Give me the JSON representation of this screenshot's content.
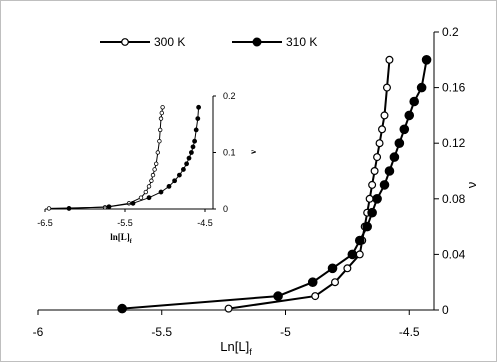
{
  "chart_data": [
    {
      "type": "line",
      "title": "",
      "xlabel": "Ln[L]",
      "xlabel_sub": "f",
      "ylabel": "ν",
      "xlim": [
        -6,
        -4.4
      ],
      "ylim": [
        0,
        0.2
      ],
      "xticks": [
        -6,
        -5.5,
        -5,
        -4.5
      ],
      "xtick_labels": [
        "-6",
        "-5.5",
        "-5",
        "-4.5"
      ],
      "yticks": [
        0,
        0.04,
        0.08,
        0.12,
        0.16,
        0.2
      ],
      "ytick_labels": [
        "0",
        "0.04",
        "0.08",
        "0.12",
        "0.16",
        "0.2"
      ],
      "y_axis_side": "right",
      "grid": false,
      "legend_position": "top",
      "series": [
        {
          "name": "300 K",
          "marker": "open-circle",
          "x": [
            -5.23,
            -4.88,
            -4.8,
            -4.75,
            -4.7,
            -4.69,
            -4.68,
            -4.67,
            -4.66,
            -4.65,
            -4.64,
            -4.63,
            -4.62,
            -4.61,
            -4.6,
            -4.59,
            -4.58
          ],
          "y": [
            0.001,
            0.01,
            0.02,
            0.03,
            0.04,
            0.05,
            0.06,
            0.07,
            0.08,
            0.09,
            0.1,
            0.11,
            0.12,
            0.13,
            0.14,
            0.16,
            0.18
          ]
        },
        {
          "name": "310 K",
          "marker": "filled-circle",
          "x": [
            -5.66,
            -5.03,
            -4.89,
            -4.81,
            -4.73,
            -4.7,
            -4.67,
            -4.65,
            -4.63,
            -4.6,
            -4.58,
            -4.56,
            -4.54,
            -4.52,
            -4.5,
            -4.48,
            -4.45,
            -4.43
          ],
          "y": [
            0.001,
            0.01,
            0.02,
            0.03,
            0.04,
            0.05,
            0.06,
            0.07,
            0.08,
            0.09,
            0.1,
            0.11,
            0.12,
            0.13,
            0.14,
            0.15,
            0.16,
            0.18
          ]
        }
      ]
    },
    {
      "type": "line",
      "title": "",
      "xlabel": "ln[L]",
      "xlabel_sub": "f",
      "ylabel": "ν",
      "xlim": [
        -6.5,
        -4.4
      ],
      "ylim": [
        0,
        0.2
      ],
      "xticks": [
        -6.5,
        -5.5,
        -4.5
      ],
      "xtick_labels": [
        "-6.5",
        "-5.5",
        "-4.5"
      ],
      "yticks": [
        0,
        0.1,
        0.2
      ],
      "ytick_labels": [
        "0",
        "0.1",
        "0.2"
      ],
      "y_axis_side": "right",
      "grid": false,
      "series": [
        {
          "name": "300 K",
          "marker": "open-circle",
          "x": [
            -6.45,
            -5.75,
            -5.45,
            -5.3,
            -5.24,
            -5.2,
            -5.17,
            -5.15,
            -5.13,
            -5.11,
            -5.09,
            -5.07,
            -5.06,
            -5.05,
            -5.04,
            -5.03
          ],
          "y": [
            0.001,
            0.003,
            0.01,
            0.02,
            0.03,
            0.04,
            0.05,
            0.06,
            0.07,
            0.08,
            0.1,
            0.12,
            0.14,
            0.16,
            0.17,
            0.18
          ]
        },
        {
          "name": "310 K",
          "marker": "filled-circle",
          "x": [
            -6.2,
            -5.7,
            -5.4,
            -5.2,
            -5.05,
            -4.95,
            -4.88,
            -4.82,
            -4.77,
            -4.73,
            -4.7,
            -4.67,
            -4.65,
            -4.63,
            -4.61,
            -4.59,
            -4.58
          ],
          "y": [
            0.001,
            0.004,
            0.01,
            0.02,
            0.03,
            0.04,
            0.05,
            0.06,
            0.07,
            0.08,
            0.09,
            0.1,
            0.11,
            0.12,
            0.14,
            0.16,
            0.18
          ]
        }
      ]
    }
  ]
}
